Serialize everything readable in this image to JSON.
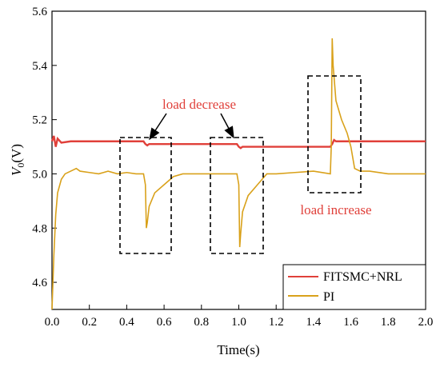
{
  "chart_data": {
    "type": "line",
    "xlabel": "Time(s)",
    "ylabel_main": "V",
    "ylabel_sub": "0",
    "ylabel_unit": "(V)",
    "xlim": [
      0.0,
      2.0
    ],
    "ylim": [
      4.5,
      5.6
    ],
    "xticks": [
      0.0,
      0.2,
      0.4,
      0.6,
      0.8,
      1.0,
      1.2,
      1.4,
      1.6,
      1.8,
      2.0
    ],
    "xtick_labels": [
      "0.0",
      "0.2",
      "0.4",
      "0.6",
      "0.8",
      "1.0",
      "1.2",
      "1.4",
      "1.6",
      "1.8",
      "2.0"
    ],
    "yticks": [
      4.6,
      4.8,
      5.0,
      5.2,
      5.4,
      5.6
    ],
    "ytick_labels": [
      "4.6",
      "4.8",
      "5.0",
      "5.2",
      "5.4",
      "5.6"
    ],
    "grid": false,
    "legend_position": "bottom-right",
    "series": [
      {
        "name": "FITSMC+NRL",
        "color": "#e0403a",
        "x": [
          0.0,
          0.01,
          0.02,
          0.03,
          0.05,
          0.1,
          0.3,
          0.49,
          0.5,
          0.51,
          0.52,
          0.7,
          0.99,
          1.0,
          1.01,
          1.02,
          1.3,
          1.49,
          1.5,
          1.51,
          1.52,
          1.6,
          1.8,
          2.0
        ],
        "y": [
          5.12,
          5.14,
          5.1,
          5.13,
          5.115,
          5.12,
          5.12,
          5.12,
          5.11,
          5.105,
          5.11,
          5.11,
          5.11,
          5.1,
          5.095,
          5.1,
          5.1,
          5.1,
          5.11,
          5.125,
          5.12,
          5.12,
          5.12,
          5.12
        ]
      },
      {
        "name": "PI",
        "color": "#d9a11a",
        "x": [
          0.0,
          0.01,
          0.02,
          0.03,
          0.05,
          0.07,
          0.1,
          0.13,
          0.15,
          0.2,
          0.25,
          0.3,
          0.35,
          0.4,
          0.45,
          0.49,
          0.5,
          0.505,
          0.51,
          0.52,
          0.55,
          0.6,
          0.65,
          0.7,
          0.8,
          0.9,
          0.99,
          1.0,
          1.005,
          1.01,
          1.02,
          1.05,
          1.1,
          1.15,
          1.2,
          1.3,
          1.4,
          1.49,
          1.495,
          1.5,
          1.505,
          1.52,
          1.55,
          1.58,
          1.6,
          1.62,
          1.65,
          1.7,
          1.8,
          1.9,
          2.0
        ],
        "y": [
          4.5,
          4.7,
          4.85,
          4.93,
          4.98,
          5.0,
          5.01,
          5.02,
          5.01,
          5.005,
          5.0,
          5.01,
          5.0,
          5.005,
          5.0,
          5.0,
          4.96,
          4.8,
          4.82,
          4.88,
          4.93,
          4.96,
          4.99,
          5.0,
          5.0,
          5.0,
          5.0,
          4.96,
          4.73,
          4.78,
          4.86,
          4.92,
          4.96,
          5.0,
          5.0,
          5.005,
          5.01,
          5.0,
          5.1,
          5.5,
          5.4,
          5.27,
          5.2,
          5.15,
          5.1,
          5.02,
          5.01,
          5.01,
          5.0,
          5.0,
          5.0
        ]
      }
    ],
    "annotations": {
      "load_decrease": "load decrease",
      "load_increase": "load increase"
    }
  }
}
